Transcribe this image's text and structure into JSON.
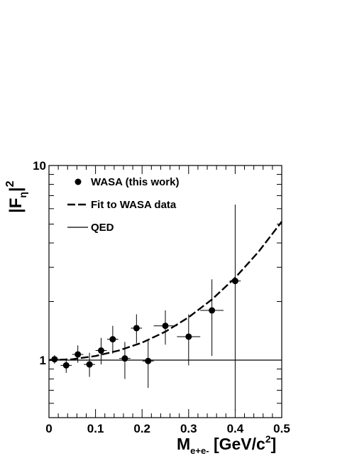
{
  "chart_data": {
    "type": "scatter",
    "xlim": [
      0,
      0.5
    ],
    "ylim": [
      0.55,
      10
    ],
    "ylog": true,
    "grid": false,
    "legend_position": "top-left",
    "x_ticks": [
      {
        "value": 0,
        "label": "0"
      },
      {
        "value": 0.1,
        "label": "0.1"
      },
      {
        "value": 0.2,
        "label": "0.2"
      },
      {
        "value": 0.3,
        "label": "0.3"
      },
      {
        "value": 0.4,
        "label": "0.4"
      },
      {
        "value": 0.5,
        "label": "0.5"
      }
    ],
    "y_ticks": [
      {
        "value": 1,
        "label": "1"
      },
      {
        "value": 10,
        "label": "10"
      }
    ],
    "xlabel": {
      "main": "M",
      "sub": "e+e-",
      "rest": " [GeV/c",
      "sup": "2",
      "end": "]"
    },
    "ylabel": {
      "bar_open": "|F",
      "sub": "η",
      "bar_close": "|",
      "sup": "2"
    },
    "series": [
      {
        "name": "WASA (this work)",
        "style": "points",
        "points": [
          {
            "x": 0.012,
            "y": 1.01,
            "xerr": 0.01,
            "ylo": 0.96,
            "yhi": 1.06
          },
          {
            "x": 0.037,
            "y": 0.94,
            "xerr": 0.012,
            "ylo": 0.86,
            "yhi": 1.02
          },
          {
            "x": 0.062,
            "y": 1.07,
            "xerr": 0.012,
            "ylo": 0.97,
            "yhi": 1.19
          },
          {
            "x": 0.087,
            "y": 0.95,
            "xerr": 0.012,
            "ylo": 0.82,
            "yhi": 1.09
          },
          {
            "x": 0.112,
            "y": 1.12,
            "xerr": 0.012,
            "ylo": 0.95,
            "yhi": 1.3
          },
          {
            "x": 0.137,
            "y": 1.28,
            "xerr": 0.012,
            "ylo": 1.08,
            "yhi": 1.5
          },
          {
            "x": 0.163,
            "y": 1.02,
            "xerr": 0.012,
            "ylo": 0.8,
            "yhi": 1.24
          },
          {
            "x": 0.188,
            "y": 1.46,
            "xerr": 0.012,
            "ylo": 1.22,
            "yhi": 1.72
          },
          {
            "x": 0.213,
            "y": 0.99,
            "xerr": 0.012,
            "ylo": 0.72,
            "yhi": 1.26
          },
          {
            "x": 0.25,
            "y": 1.5,
            "xerr": 0.025,
            "ylo": 1.2,
            "yhi": 1.8
          },
          {
            "x": 0.3,
            "y": 1.32,
            "xerr": 0.025,
            "ylo": 0.94,
            "yhi": 1.72
          },
          {
            "x": 0.35,
            "y": 1.8,
            "xerr": 0.025,
            "ylo": 1.05,
            "yhi": 2.6
          },
          {
            "x": 0.4,
            "y": 2.55,
            "xerr": 0.012,
            "ylo": 0.55,
            "yhi": 6.3
          }
        ]
      },
      {
        "name": "Fit to WASA data",
        "style": "dashed",
        "x": [
          0,
          0.05,
          0.1,
          0.15,
          0.2,
          0.25,
          0.3,
          0.35,
          0.4,
          0.45,
          0.5
        ],
        "y": [
          1.0,
          1.01,
          1.05,
          1.12,
          1.23,
          1.4,
          1.66,
          2.05,
          2.65,
          3.6,
          5.15
        ]
      },
      {
        "name": "QED",
        "style": "solid",
        "x": [
          0,
          0.5
        ],
        "y": [
          1.0,
          1.0
        ]
      }
    ]
  }
}
